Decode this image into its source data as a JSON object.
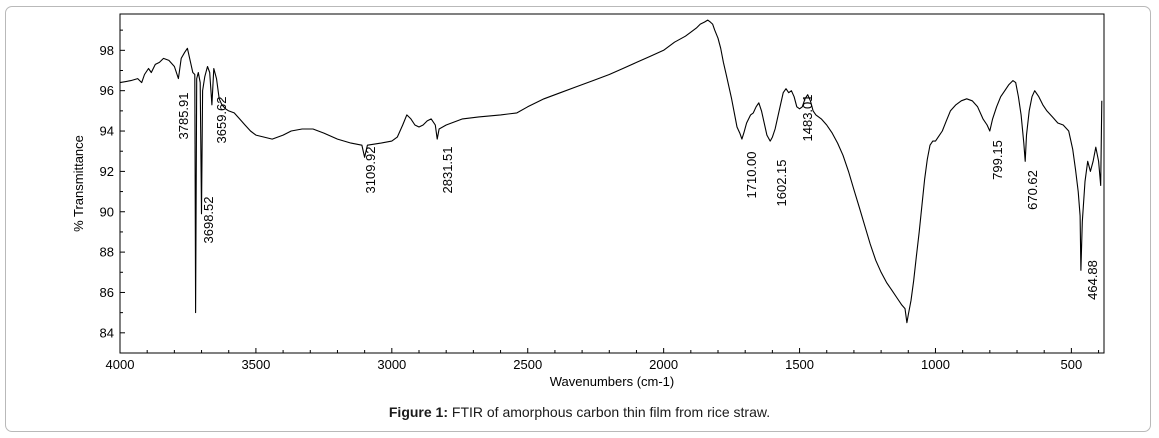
{
  "chart_data": {
    "type": "line",
    "xlabel": "Wavenumbers (cm-1)",
    "ylabel": "% Transmittance",
    "xlim": [
      4000,
      380
    ],
    "ylim": [
      83,
      99.8
    ],
    "x_ticks": [
      4000,
      3500,
      3000,
      2500,
      2000,
      1500,
      1000,
      500
    ],
    "y_ticks": [
      84,
      86,
      88,
      90,
      92,
      94,
      96,
      98
    ],
    "grid": false,
    "series": [
      {
        "color": "#000000",
        "points": [
          [
            4000,
            96.4
          ],
          [
            3960,
            96.5
          ],
          [
            3935,
            96.6
          ],
          [
            3920,
            96.4
          ],
          [
            3910,
            96.8
          ],
          [
            3895,
            97.1
          ],
          [
            3885,
            96.9
          ],
          [
            3870,
            97.3
          ],
          [
            3855,
            97.4
          ],
          [
            3840,
            97.6
          ],
          [
            3820,
            97.5
          ],
          [
            3800,
            97.2
          ],
          [
            3785,
            96.6
          ],
          [
            3775,
            97.6
          ],
          [
            3762,
            97.9
          ],
          [
            3752,
            98.1
          ],
          [
            3742,
            97.5
          ],
          [
            3732,
            96.9
          ],
          [
            3725,
            96.8
          ],
          [
            3722,
            85.0
          ],
          [
            3718,
            96.6
          ],
          [
            3712,
            96.9
          ],
          [
            3705,
            96.4
          ],
          [
            3700,
            89.9
          ],
          [
            3696,
            96.0
          ],
          [
            3688,
            96.7
          ],
          [
            3678,
            97.2
          ],
          [
            3670,
            96.9
          ],
          [
            3662,
            95.3
          ],
          [
            3655,
            97.1
          ],
          [
            3645,
            96.6
          ],
          [
            3635,
            95.6
          ],
          [
            3625,
            95.3
          ],
          [
            3612,
            95.1
          ],
          [
            3600,
            95.0
          ],
          [
            3580,
            94.9
          ],
          [
            3560,
            94.6
          ],
          [
            3540,
            94.3
          ],
          [
            3520,
            94.0
          ],
          [
            3500,
            93.8
          ],
          [
            3470,
            93.7
          ],
          [
            3440,
            93.6
          ],
          [
            3400,
            93.8
          ],
          [
            3370,
            94.0
          ],
          [
            3330,
            94.1
          ],
          [
            3290,
            94.1
          ],
          [
            3250,
            93.9
          ],
          [
            3200,
            93.6
          ],
          [
            3150,
            93.4
          ],
          [
            3110,
            93.3
          ],
          [
            3100,
            92.7
          ],
          [
            3090,
            93.3
          ],
          [
            3040,
            93.4
          ],
          [
            3000,
            93.5
          ],
          [
            2980,
            93.7
          ],
          [
            2960,
            94.3
          ],
          [
            2945,
            94.8
          ],
          [
            2930,
            94.6
          ],
          [
            2915,
            94.3
          ],
          [
            2900,
            94.2
          ],
          [
            2885,
            94.3
          ],
          [
            2870,
            94.5
          ],
          [
            2855,
            94.6
          ],
          [
            2840,
            94.3
          ],
          [
            2833,
            93.6
          ],
          [
            2826,
            94.1
          ],
          [
            2800,
            94.3
          ],
          [
            2740,
            94.6
          ],
          [
            2680,
            94.7
          ],
          [
            2600,
            94.8
          ],
          [
            2540,
            94.9
          ],
          [
            2500,
            95.2
          ],
          [
            2440,
            95.6
          ],
          [
            2380,
            95.9
          ],
          [
            2320,
            96.2
          ],
          [
            2260,
            96.5
          ],
          [
            2200,
            96.8
          ],
          [
            2150,
            97.1
          ],
          [
            2100,
            97.4
          ],
          [
            2050,
            97.7
          ],
          [
            2000,
            98.0
          ],
          [
            1960,
            98.4
          ],
          [
            1920,
            98.7
          ],
          [
            1900,
            98.9
          ],
          [
            1880,
            99.1
          ],
          [
            1865,
            99.3
          ],
          [
            1850,
            99.4
          ],
          [
            1838,
            99.5
          ],
          [
            1828,
            99.4
          ],
          [
            1820,
            99.3
          ],
          [
            1812,
            99.0
          ],
          [
            1800,
            98.6
          ],
          [
            1790,
            98.1
          ],
          [
            1780,
            97.4
          ],
          [
            1770,
            96.8
          ],
          [
            1760,
            96.2
          ],
          [
            1750,
            95.6
          ],
          [
            1740,
            94.9
          ],
          [
            1730,
            94.2
          ],
          [
            1720,
            93.9
          ],
          [
            1712,
            93.6
          ],
          [
            1705,
            93.9
          ],
          [
            1695,
            94.4
          ],
          [
            1680,
            94.8
          ],
          [
            1670,
            94.9
          ],
          [
            1660,
            95.2
          ],
          [
            1650,
            95.4
          ],
          [
            1640,
            95.0
          ],
          [
            1630,
            94.4
          ],
          [
            1620,
            93.8
          ],
          [
            1608,
            93.5
          ],
          [
            1600,
            93.7
          ],
          [
            1590,
            94.1
          ],
          [
            1580,
            94.7
          ],
          [
            1570,
            95.3
          ],
          [
            1560,
            95.9
          ],
          [
            1550,
            96.1
          ],
          [
            1540,
            95.9
          ],
          [
            1530,
            96.0
          ],
          [
            1520,
            95.7
          ],
          [
            1510,
            95.2
          ],
          [
            1500,
            95.1
          ],
          [
            1490,
            95.2
          ],
          [
            1480,
            95.6
          ],
          [
            1470,
            95.8
          ],
          [
            1460,
            95.5
          ],
          [
            1450,
            95.0
          ],
          [
            1440,
            94.8
          ],
          [
            1420,
            94.6
          ],
          [
            1400,
            94.3
          ],
          [
            1380,
            93.9
          ],
          [
            1360,
            93.4
          ],
          [
            1340,
            92.8
          ],
          [
            1320,
            92.0
          ],
          [
            1300,
            91.1
          ],
          [
            1280,
            90.2
          ],
          [
            1260,
            89.3
          ],
          [
            1240,
            88.4
          ],
          [
            1220,
            87.6
          ],
          [
            1200,
            87.0
          ],
          [
            1180,
            86.5
          ],
          [
            1160,
            86.1
          ],
          [
            1140,
            85.7
          ],
          [
            1125,
            85.4
          ],
          [
            1112,
            85.2
          ],
          [
            1105,
            84.5
          ],
          [
            1100,
            84.9
          ],
          [
            1090,
            85.6
          ],
          [
            1080,
            86.6
          ],
          [
            1070,
            87.8
          ],
          [
            1060,
            89.0
          ],
          [
            1050,
            90.3
          ],
          [
            1040,
            91.6
          ],
          [
            1030,
            92.6
          ],
          [
            1020,
            93.3
          ],
          [
            1010,
            93.5
          ],
          [
            1000,
            93.5
          ],
          [
            990,
            93.7
          ],
          [
            975,
            94.0
          ],
          [
            960,
            94.5
          ],
          [
            945,
            95.0
          ],
          [
            925,
            95.3
          ],
          [
            905,
            95.5
          ],
          [
            885,
            95.6
          ],
          [
            865,
            95.5
          ],
          [
            845,
            95.2
          ],
          [
            825,
            94.6
          ],
          [
            810,
            94.3
          ],
          [
            800,
            94.0
          ],
          [
            790,
            94.6
          ],
          [
            775,
            95.2
          ],
          [
            760,
            95.7
          ],
          [
            745,
            96.0
          ],
          [
            730,
            96.3
          ],
          [
            715,
            96.5
          ],
          [
            705,
            96.4
          ],
          [
            695,
            95.7
          ],
          [
            685,
            94.8
          ],
          [
            675,
            93.4
          ],
          [
            670,
            92.5
          ],
          [
            665,
            93.8
          ],
          [
            655,
            95.0
          ],
          [
            645,
            95.7
          ],
          [
            635,
            96.0
          ],
          [
            620,
            95.7
          ],
          [
            605,
            95.3
          ],
          [
            590,
            95.0
          ],
          [
            570,
            94.7
          ],
          [
            550,
            94.4
          ],
          [
            530,
            94.3
          ],
          [
            510,
            94.0
          ],
          [
            495,
            93.1
          ],
          [
            485,
            92.1
          ],
          [
            475,
            91.0
          ],
          [
            468,
            89.8
          ],
          [
            465,
            87.1
          ],
          [
            460,
            89.5
          ],
          [
            450,
            91.5
          ],
          [
            440,
            92.5
          ],
          [
            430,
            92.0
          ],
          [
            420,
            92.5
          ],
          [
            410,
            93.2
          ],
          [
            400,
            92.5
          ],
          [
            392,
            91.3
          ],
          [
            388,
            95.5
          ]
        ]
      }
    ],
    "annotations": [
      {
        "x": 3785.91,
        "text": "3785.91"
      },
      {
        "x": 3698.52,
        "text": "3698.52"
      },
      {
        "x": 3659.62,
        "text": "3659.62"
      },
      {
        "x": 3109.92,
        "text": "3109.92"
      },
      {
        "x": 2831.51,
        "text": "2831.51"
      },
      {
        "x": 1710.0,
        "text": "1710.00"
      },
      {
        "x": 1602.15,
        "text": "1602.15"
      },
      {
        "x": 1483.01,
        "text": "1483.01"
      },
      {
        "x": 799.15,
        "text": "799.15"
      },
      {
        "x": 670.62,
        "text": "670.62"
      },
      {
        "x": 464.88,
        "text": "464.88"
      }
    ]
  },
  "caption": {
    "prefix": "Figure 1:",
    "text": " FTIR of amorphous carbon thin film from rice straw."
  }
}
